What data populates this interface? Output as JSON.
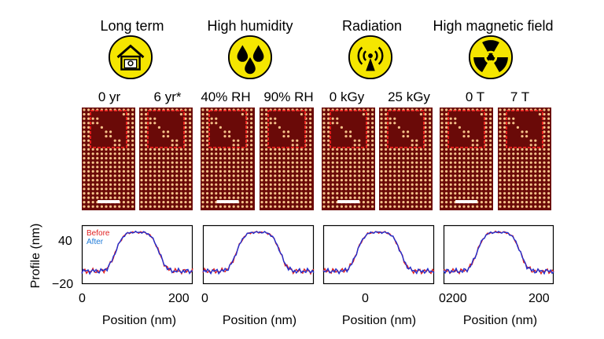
{
  "categories": [
    {
      "title": "Long term",
      "icon": "house-icon",
      "conditions": [
        "0 yr",
        "6 yr*"
      ]
    },
    {
      "title": "High humidity",
      "icon": "water-drops-icon",
      "conditions": [
        "40% RH",
        "90% RH"
      ]
    },
    {
      "title": "Radiation",
      "icon": "radiation-antenna-icon",
      "conditions": [
        "0 kGy",
        "25 kGy"
      ]
    },
    {
      "title": "High magnetic field",
      "icon": "radiation-trefoil-icon",
      "conditions": [
        "0 T",
        "7 T"
      ]
    }
  ],
  "colors": {
    "icon_fill": "#f5e600",
    "before": "#e02020",
    "after": "#2030d0",
    "panel": "#6a0a08",
    "dot": "#f6c38a",
    "box": "#ff2020"
  },
  "plots": {
    "ylabel": "Profile (nm)",
    "xlabel": "Position (nm)",
    "y_ticks": [
      "40",
      "−20"
    ],
    "x_ticks": [
      [
        "0",
        "200"
      ],
      [
        "0"
      ],
      [
        "0"
      ],
      [
        "0200",
        "200"
      ]
    ],
    "legend": {
      "before": "Before",
      "after": "After"
    }
  }
}
